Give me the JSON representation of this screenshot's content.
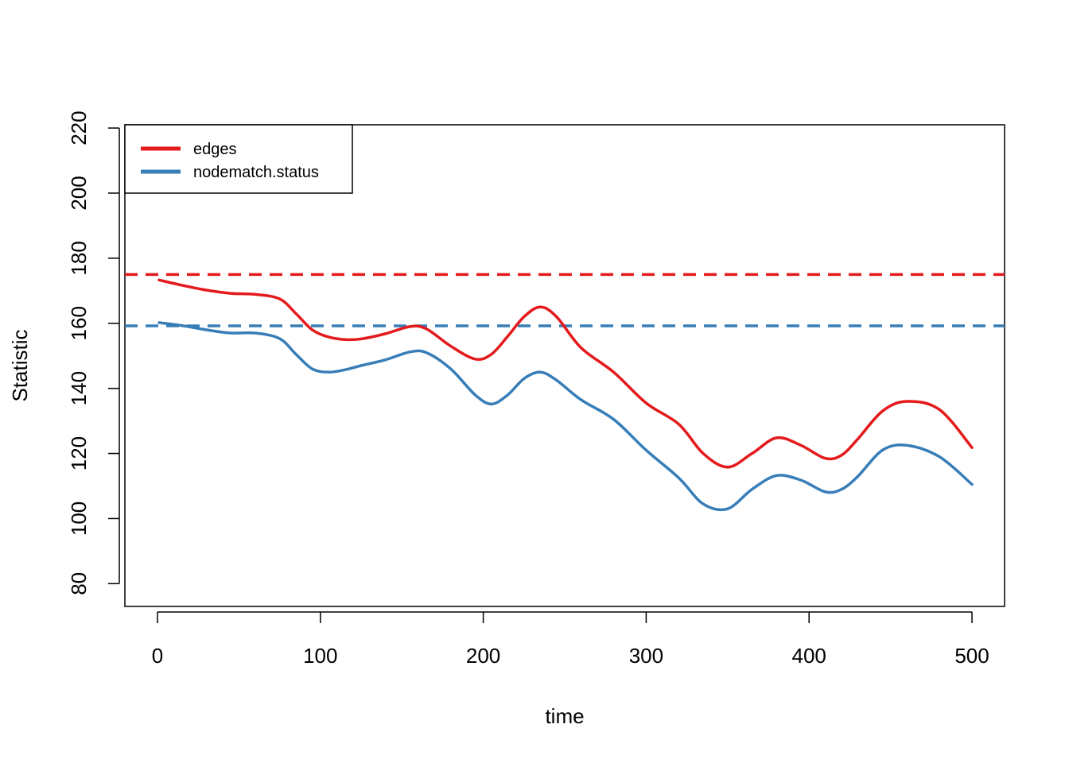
{
  "chart_data": {
    "type": "line",
    "title": "",
    "xlabel": "time",
    "ylabel": "Statistic",
    "xlim": [
      -20,
      520
    ],
    "ylim": [
      73,
      221
    ],
    "x_ticks": [
      "0",
      "100",
      "200",
      "300",
      "400",
      "500"
    ],
    "y_ticks": [
      "80",
      "100",
      "120",
      "140",
      "160",
      "180",
      "200",
      "220"
    ],
    "grid": false,
    "legend_position": "top-left",
    "series": [
      {
        "name": "edges",
        "color": "#E41A1C",
        "line_style": "solid",
        "x": [
          1,
          15,
          30,
          45,
          60,
          75,
          85,
          95,
          105,
          115,
          125,
          140,
          155,
          165,
          180,
          195,
          205,
          215,
          225,
          235,
          245,
          260,
          280,
          300,
          320,
          335,
          350,
          365,
          380,
          395,
          410,
          420,
          430,
          445,
          460,
          480,
          500
        ],
        "y": [
          173.3,
          171.7,
          170.2,
          169.2,
          168.9,
          167.5,
          163.0,
          158.0,
          155.8,
          155.0,
          155.2,
          156.8,
          159.0,
          158.3,
          153.0,
          149.0,
          150.5,
          156.0,
          162.0,
          165.0,
          162.0,
          152.5,
          145.0,
          135.5,
          129.0,
          120.0,
          115.8,
          120.0,
          124.8,
          122.5,
          118.5,
          119.5,
          124.5,
          133.0,
          136.0,
          133.5,
          121.8
        ]
      },
      {
        "name": "nodematch.status",
        "color": "#377EB8",
        "line_style": "solid",
        "x": [
          1,
          15,
          30,
          45,
          60,
          75,
          85,
          95,
          105,
          115,
          125,
          140,
          155,
          165,
          180,
          195,
          205,
          215,
          225,
          235,
          245,
          260,
          280,
          300,
          320,
          335,
          350,
          365,
          380,
          395,
          410,
          420,
          430,
          445,
          460,
          480,
          500
        ],
        "y": [
          160.2,
          159.3,
          158.0,
          157.0,
          157.0,
          155.3,
          150.5,
          146.0,
          145.0,
          145.7,
          147.0,
          148.8,
          151.2,
          151.0,
          146.0,
          138.0,
          135.2,
          138.0,
          143.0,
          145.0,
          142.5,
          136.5,
          130.5,
          121.0,
          112.5,
          104.5,
          103.0,
          109.0,
          113.2,
          111.8,
          108.2,
          109.0,
          113.0,
          121.0,
          122.5,
          119.0,
          110.5
        ]
      }
    ],
    "reference_lines": [
      {
        "series": "edges",
        "y": 175,
        "color": "#E41A1C",
        "line_style": "dashed"
      },
      {
        "series": "nodematch.status",
        "y": 159.2,
        "color": "#377EB8",
        "line_style": "dashed"
      }
    ],
    "legend": [
      {
        "label": "edges",
        "color": "#E41A1C"
      },
      {
        "label": "nodematch.status",
        "color": "#377EB8"
      }
    ]
  }
}
